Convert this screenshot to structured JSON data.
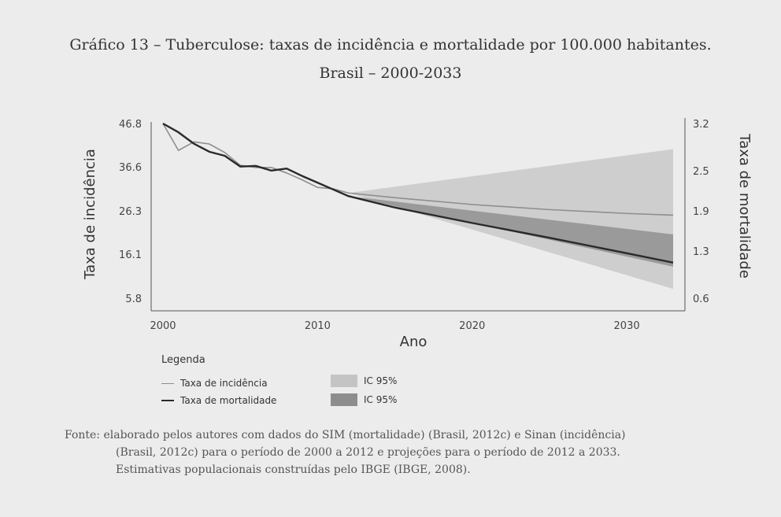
{
  "title_line1": "Gráfico 13 – Tuberculose: taxas de incidência e mortalidade por 100.000 habitantes.",
  "title_line2": "Brasil – 2000-2033",
  "chart_data": {
    "type": "line",
    "xlabel": "Ano",
    "ylabel_left": "Taxa de incidência",
    "ylabel_right": "Taxa de mortalidade",
    "x_ticks": [
      "2000",
      "2010",
      "2020",
      "2030"
    ],
    "y_left_ticks": [
      "46.8",
      "36.6",
      "26.3",
      "16.1",
      "5.8"
    ],
    "y_right_ticks": [
      "3.2",
      "2.5",
      "1.9",
      "1.3",
      "0.6"
    ],
    "xlim": [
      2000,
      2033
    ],
    "ylim_left": [
      5.8,
      46.8
    ],
    "ylim_right": [
      0.6,
      3.2
    ],
    "series": [
      {
        "name": "Taxa de incidência",
        "axis": "left",
        "color": "#8e8e8e",
        "x": [
          2000,
          2001,
          2002,
          2003,
          2004,
          2005,
          2006,
          2007,
          2008,
          2009,
          2010,
          2011,
          2012,
          2015,
          2020,
          2025,
          2030,
          2033
        ],
        "y": [
          46.8,
          40.5,
          42.5,
          42.0,
          40.0,
          37.0,
          36.5,
          36.5,
          35.2,
          33.6,
          31.8,
          31.5,
          30.5,
          29.4,
          27.8,
          26.6,
          25.7,
          25.3
        ]
      },
      {
        "name": "Taxa de mortalidade",
        "axis": "right",
        "color": "#2a2a2a",
        "x": [
          2000,
          2001,
          2002,
          2003,
          2004,
          2005,
          2006,
          2007,
          2008,
          2009,
          2010,
          2011,
          2012,
          2015,
          2020,
          2025,
          2030,
          2033
        ],
        "y": [
          3.2,
          3.07,
          2.9,
          2.78,
          2.72,
          2.56,
          2.57,
          2.5,
          2.53,
          2.42,
          2.32,
          2.22,
          2.12,
          1.95,
          1.72,
          1.5,
          1.27,
          1.13
        ]
      }
    ],
    "bands": [
      {
        "name": "IC 95%",
        "axis": "left",
        "color": "#c4c4c4",
        "x": [
          2012,
          2033
        ],
        "lower": [
          30.5,
          8.0
        ],
        "upper": [
          30.5,
          40.8
        ]
      },
      {
        "name": "IC 95%",
        "axis": "right",
        "color": "#8d8d8d",
        "x": [
          2012,
          2033
        ],
        "lower": [
          2.12,
          1.07
        ],
        "upper": [
          2.12,
          1.55
        ]
      }
    ]
  },
  "legend": {
    "heading": "Legenda",
    "items": [
      {
        "label": "Taxa de incidência",
        "ci": "IC 95%"
      },
      {
        "label": "Taxa de mortalidade",
        "ci": "IC 95%"
      }
    ]
  },
  "source": {
    "line1": "Fonte: elaborado pelos autores com dados do SIM (mortalidade) (Brasil, 2012c) e Sinan (incidência)",
    "line2": "(Brasil, 2012c) para o período de 2000 a 2012 e projeções para o período de 2012 a 2033.",
    "line3": "Estimativas populacionais construídas pelo IBGE (IBGE, 2008)."
  }
}
